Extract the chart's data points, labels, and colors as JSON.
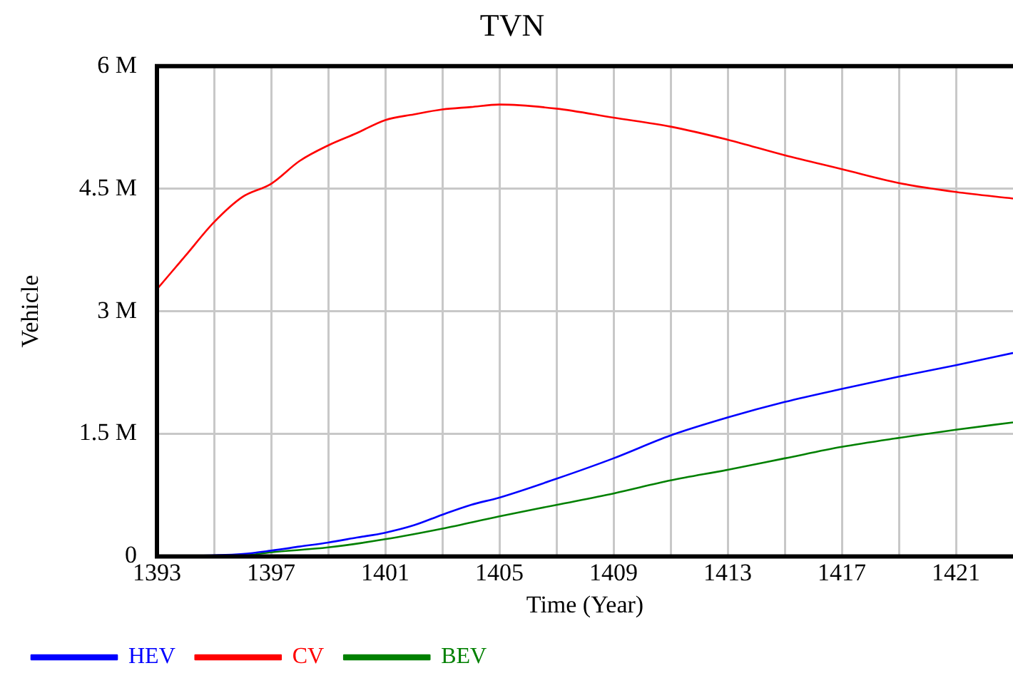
{
  "chart_data": {
    "type": "line",
    "title": "TVN",
    "xlabel": "Time (Year)",
    "ylabel": "Vehicle",
    "xlim": [
      1393,
      1423
    ],
    "xticks": [
      1393,
      {
        "value": 1395,
        "label": null
      },
      1397,
      {
        "value": 1399,
        "label": null
      },
      1401,
      {
        "value": 1403,
        "label": null
      },
      1405,
      {
        "value": 1407,
        "label": null
      },
      1409,
      {
        "value": 1411,
        "label": null
      },
      1413,
      {
        "value": 1415,
        "label": null
      },
      1417,
      {
        "value": 1419,
        "label": null
      },
      1421
    ],
    "ylim": [
      0,
      6000000
    ],
    "yticks": [
      0,
      {
        "value": 1500000,
        "label": "1.5 M"
      },
      {
        "value": 3000000,
        "label": "3 M"
      },
      {
        "value": 4500000,
        "label": "4.5 M"
      },
      {
        "value": 6000000,
        "label": "6 M"
      }
    ],
    "grid": true,
    "legend": "bottom",
    "marker": "none",
    "line_style": "solid",
    "series": [
      {
        "name": "HEV",
        "color": "#0000ff",
        "x": [
          1393,
          1396,
          1397,
          1398,
          1399,
          1400,
          1401,
          1402,
          1403,
          1404,
          1405,
          1407,
          1409,
          1411,
          1413,
          1415,
          1417,
          1419,
          1421,
          1423
        ],
        "values": [
          0,
          30000,
          70000,
          120000,
          170000,
          230000,
          290000,
          380000,
          510000,
          630000,
          720000,
          950000,
          1200000,
          1480000,
          1700000,
          1890000,
          2050000,
          2200000,
          2340000,
          2490000
        ]
      },
      {
        "name": "CV",
        "color": "#ff0000",
        "x": [
          1393,
          1394,
          1395,
          1396,
          1397,
          1398,
          1399,
          1400,
          1401,
          1402,
          1403,
          1404,
          1405,
          1407,
          1409,
          1411,
          1413,
          1415,
          1417,
          1419,
          1421,
          1423
        ],
        "values": [
          3270000,
          3680000,
          4090000,
          4400000,
          4560000,
          4840000,
          5030000,
          5180000,
          5340000,
          5410000,
          5470000,
          5500000,
          5530000,
          5480000,
          5370000,
          5260000,
          5100000,
          4910000,
          4740000,
          4570000,
          4460000,
          4380000
        ]
      },
      {
        "name": "BEV",
        "color": "#008000",
        "x": [
          1393,
          1395,
          1396,
          1397,
          1399,
          1401,
          1403,
          1405,
          1407,
          1409,
          1411,
          1413,
          1415,
          1417,
          1419,
          1421,
          1423
        ],
        "values": [
          0,
          0,
          10000,
          50000,
          110000,
          210000,
          340000,
          490000,
          630000,
          770000,
          930000,
          1060000,
          1200000,
          1340000,
          1450000,
          1550000,
          1640000
        ]
      }
    ]
  }
}
